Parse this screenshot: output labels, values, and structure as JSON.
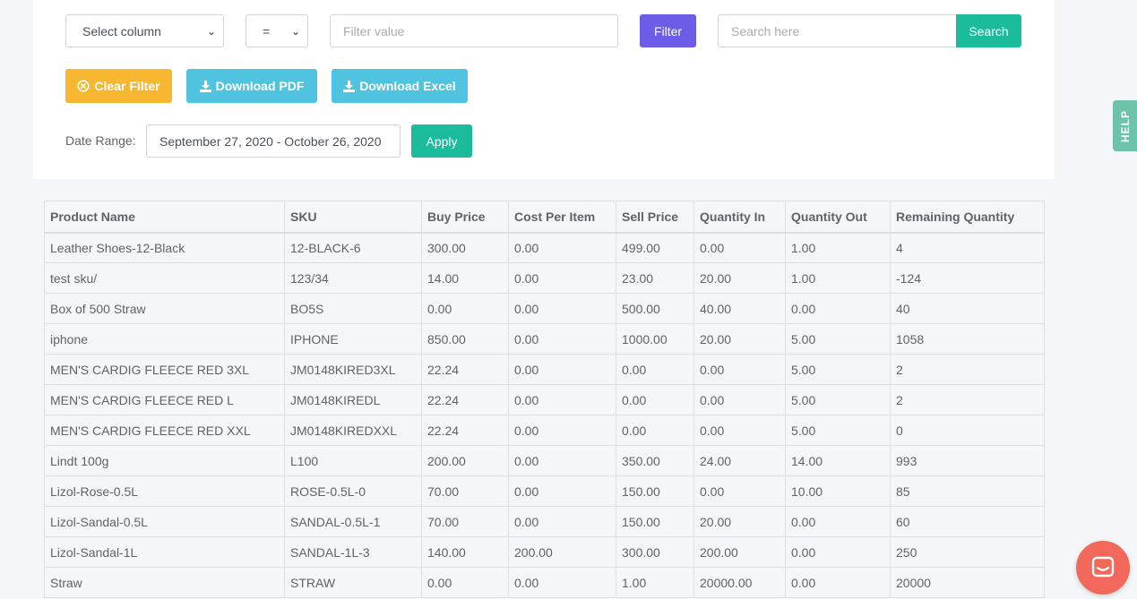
{
  "filters": {
    "column_select": "Select column",
    "operator_select": "=",
    "filter_value_placeholder": "Filter value",
    "filter_label": "Filter",
    "search_placeholder": "Search here",
    "search_label": "Search"
  },
  "actions": {
    "clear_filter": "Clear Filter",
    "download_pdf": "Download PDF",
    "download_excel": "Download Excel"
  },
  "date_range": {
    "label": "Date Range:",
    "value": "September 27, 2020 - October 26, 2020",
    "apply_label": "Apply"
  },
  "table": {
    "columns": [
      "Product Name",
      "SKU",
      "Buy Price",
      "Cost Per Item",
      "Sell Price",
      "Quantity In",
      "Quantity Out",
      "Remaining Quantity"
    ],
    "rows": [
      [
        "Leather Shoes-12-Black",
        "12-BLACK-6",
        "300.00",
        "0.00",
        "499.00",
        "0.00",
        "1.00",
        "4"
      ],
      [
        "test sku/",
        "123/34",
        "14.00",
        "0.00",
        "23.00",
        "20.00",
        "1.00",
        "-124"
      ],
      [
        "Box of 500 Straw",
        "BO5S",
        "0.00",
        "0.00",
        "500.00",
        "40.00",
        "0.00",
        "40"
      ],
      [
        "iphone",
        "IPHONE",
        "850.00",
        "0.00",
        "1000.00",
        "20.00",
        "5.00",
        "1058"
      ],
      [
        "MEN'S CARDIG FLEECE RED 3XL",
        "JM0148KIRED3XL",
        "22.24",
        "0.00",
        "0.00",
        "0.00",
        "5.00",
        "2"
      ],
      [
        "MEN'S CARDIG FLEECE RED L",
        "JM0148KIREDL",
        "22.24",
        "0.00",
        "0.00",
        "0.00",
        "5.00",
        "2"
      ],
      [
        "MEN'S CARDIG FLEECE RED XXL",
        "JM0148KIREDXXL",
        "22.24",
        "0.00",
        "0.00",
        "0.00",
        "5.00",
        "0"
      ],
      [
        "Lindt 100g",
        "L100",
        "200.00",
        "0.00",
        "350.00",
        "24.00",
        "14.00",
        "993"
      ],
      [
        "Lizol-Rose-0.5L",
        "ROSE-0.5L-0",
        "70.00",
        "0.00",
        "150.00",
        "0.00",
        "10.00",
        "85"
      ],
      [
        "Lizol-Sandal-0.5L",
        "SANDAL-0.5L-1",
        "70.00",
        "0.00",
        "150.00",
        "20.00",
        "0.00",
        "60"
      ],
      [
        "Lizol-Sandal-1L",
        "SANDAL-1L-3",
        "140.00",
        "200.00",
        "300.00",
        "200.00",
        "0.00",
        "250"
      ],
      [
        "Straw",
        "STRAW",
        "0.00",
        "0.00",
        "1.00",
        "20000.00",
        "0.00",
        "20000"
      ]
    ]
  },
  "help_tab": "HELP",
  "colors": {
    "filter_button": "#6c5ce7",
    "search_button": "#1abc9c",
    "clear_filter_button": "#f7b731",
    "download_button": "#4fc3e0",
    "help_tab": "#6dc2a8",
    "chat_button": "#f2685b"
  },
  "icons": {
    "clear_filter": "close-circle-icon",
    "download": "download-icon",
    "chat": "chat-icon"
  }
}
